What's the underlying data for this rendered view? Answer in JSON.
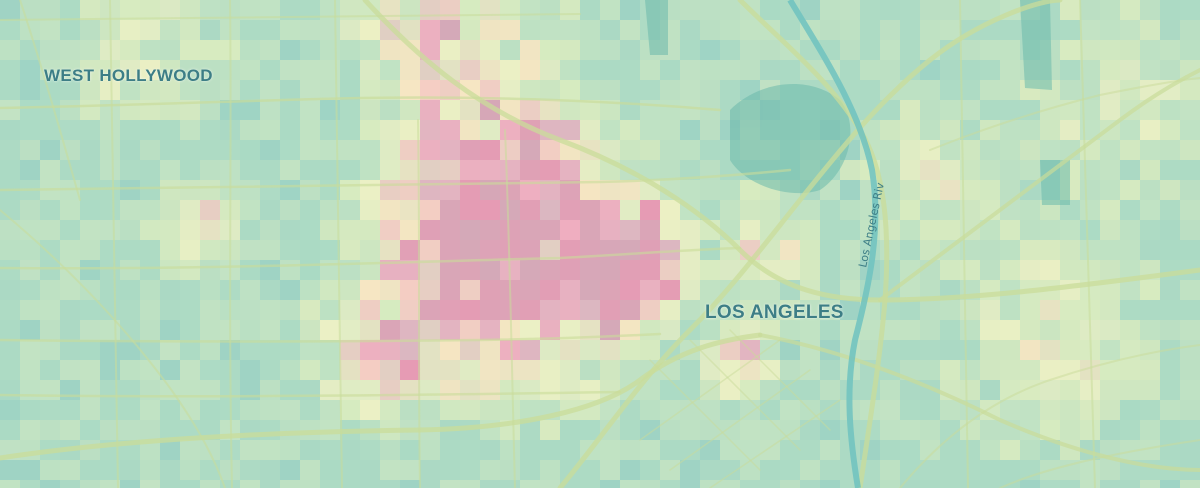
{
  "map": {
    "labels": {
      "west_hollywood": "WEST HOLLYWOOD",
      "los_angeles": "LOS ANGELES"
    },
    "river_label": "Los Angeles Riv",
    "colors": {
      "base": "#9fd3c4",
      "label_text": "#3d7e86",
      "road": "#c9dc9a",
      "water": "#6fc2bf",
      "park": "#6bb9ac"
    },
    "color_scale": [
      "#8fcbbd",
      "#9fd3c4",
      "#aedbc4",
      "#c3e3c3",
      "#d9ebc0",
      "#ecf0c4",
      "#f7e6c2",
      "#f6cdc3",
      "#efaec0",
      "#e69bb4"
    ]
  }
}
